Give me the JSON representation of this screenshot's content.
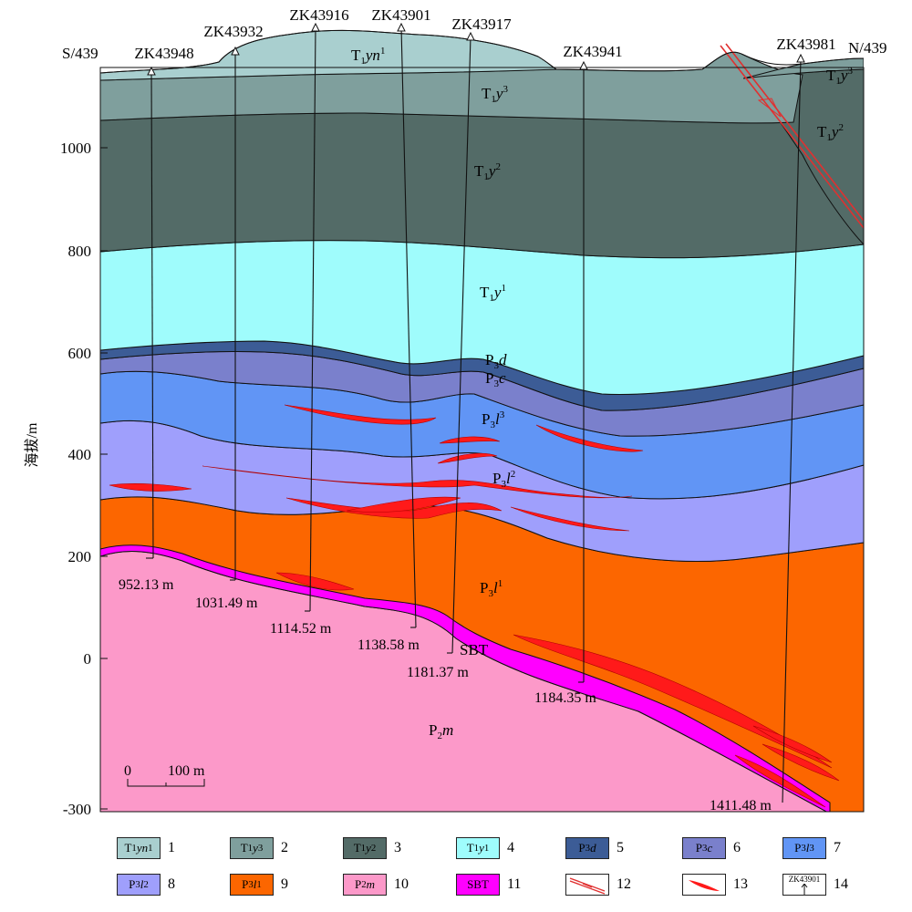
{
  "section": {
    "left_end": "S/439",
    "right_end": "N/439",
    "ylabel": "海拔/m",
    "y_ticks": [
      "1000",
      "800",
      "600",
      "400",
      "200",
      "0",
      "-300"
    ],
    "scale_bar": {
      "zero": "0",
      "label": "100 m"
    }
  },
  "boreholes": [
    {
      "name": "ZK43948",
      "depth": "952.13 m"
    },
    {
      "name": "ZK43932",
      "depth": "1031.49 m"
    },
    {
      "name": "ZK43916",
      "depth": "1114.52 m"
    },
    {
      "name": "ZK43901",
      "depth": "1138.58 m"
    },
    {
      "name": "ZK43917",
      "depth": "1181.37 m"
    },
    {
      "name": "ZK43941",
      "depth": "1184.35 m"
    },
    {
      "name": "ZK43981",
      "depth": "1411.48 m"
    }
  ],
  "layers": [
    {
      "code": "T1yn1",
      "base": "T",
      "sub": "1",
      "rest": "yn",
      "sup": "1",
      "color": "#a9cfcf"
    },
    {
      "code": "T1y3",
      "base": "T",
      "sub": "1",
      "rest": "y",
      "sup": "3",
      "color": "#7f9f9d"
    },
    {
      "code": "T1y2",
      "base": "T",
      "sub": "1",
      "rest": "y",
      "sup": "2",
      "color": "#536b67"
    },
    {
      "code": "T1y1",
      "base": "T",
      "sub": "1",
      "rest": "y",
      "sup": "1",
      "color": "#9ffcfc"
    },
    {
      "code": "P3d",
      "base": "P",
      "sub": "3",
      "rest": "d",
      "sup": "",
      "color": "#3c5c96"
    },
    {
      "code": "P3c",
      "base": "P",
      "sub": "3",
      "rest": "c",
      "sup": "",
      "color": "#7a80cc"
    },
    {
      "code": "P3l3",
      "base": "P",
      "sub": "3",
      "rest": "l",
      "sup": "3",
      "color": "#6195f5"
    },
    {
      "code": "P3l2",
      "base": "P",
      "sub": "3",
      "rest": "l",
      "sup": "2",
      "color": "#9f9ffc"
    },
    {
      "code": "P3l1",
      "base": "P",
      "sub": "3",
      "rest": "l",
      "sup": "1",
      "color": "#fc6600"
    },
    {
      "code": "P2m",
      "base": "P",
      "sub": "2",
      "rest": "m",
      "sup": "",
      "color": "#fc99c9"
    },
    {
      "code": "SBT",
      "base": "SBT",
      "sub": "",
      "rest": "",
      "sup": "",
      "color": "#ff00ff"
    }
  ],
  "legend": [
    {
      "num": "1",
      "text": "T1yn1"
    },
    {
      "num": "2",
      "text": "T1y3"
    },
    {
      "num": "3",
      "text": "T1y2"
    },
    {
      "num": "4",
      "text": "T1y1"
    },
    {
      "num": "5",
      "text": "P3d"
    },
    {
      "num": "6",
      "text": "P3c"
    },
    {
      "num": "7",
      "text": "P3l3"
    },
    {
      "num": "8",
      "text": "P3l2"
    },
    {
      "num": "9",
      "text": "P3l1"
    },
    {
      "num": "10",
      "text": "P2m"
    },
    {
      "num": "11",
      "text": "SBT"
    },
    {
      "num": "12",
      "text": "fault"
    },
    {
      "num": "13",
      "text": "orebody"
    },
    {
      "num": "14",
      "text": "ZK43901"
    }
  ],
  "colors": {
    "ore": "#ff1a1a",
    "fault": "#e03030",
    "outline": "#111111"
  }
}
